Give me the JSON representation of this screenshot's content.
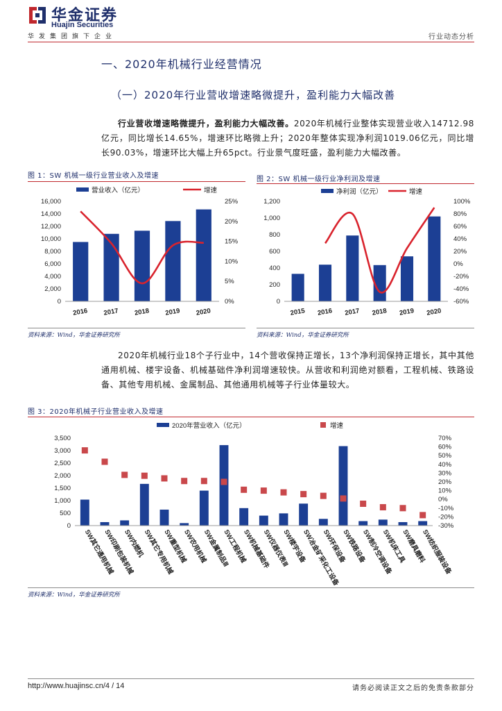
{
  "header": {
    "brand_cn": "华金证券",
    "brand_en": "Huajin Securities",
    "tagline": "华发集团旗下企业",
    "section": "行业动态分析",
    "accent": "#c0272d",
    "navy": "#1f2f6b"
  },
  "section1": {
    "title": "一、2020年机械行业经营情况",
    "subtitle": "（一）2020年行业营收增速略微提升，盈利能力大幅改善",
    "para_bold": "行业营收增速略微提升，盈利能力大幅改善。",
    "para_rest": "2020年机械行业整体实现营业收入14712.98亿元，同比增长14.65%，增速环比略微上升；2020年整体实现净利润1019.06亿元，同比增长90.03%，增速环比大幅上升65pct。行业景气度旺盛，盈利能力大幅改善。"
  },
  "fig1": {
    "title": "图 1：SW 机械一级行业营业收入及增速",
    "source": "资料来源：Wind，华金证券研究所"
  },
  "fig2": {
    "title": "图 2：SW 机械一级行业净利润及增速",
    "source": "资料来源：Wind，华金证券研究所"
  },
  "para2": "2020年机械行业18个子行业中，14个营收保持正增长，13个净利润保持正增长，其中其他通用机械、楼宇设备、机械基础件净利润增速较快。从营收和利润绝对额看，工程机械、铁路设备、其他专用机械、金属制品、其他通用机械等子行业体量较大。",
  "fig3": {
    "title": "图 3：2020年机械子行业营业收入及增速",
    "source": "资料来源：Wind，华金证券研究所"
  },
  "footer": {
    "url": "http://www.huajinsc.cn/",
    "page": "4 / 14",
    "disclaimer": "请务必阅读正文之后的免责条款部分"
  },
  "chart_data": [
    {
      "type": "bar",
      "title": "SW机械一级行业营业收入及增速",
      "categories": [
        "2016",
        "2017",
        "2018",
        "2019",
        "2020"
      ],
      "series": [
        {
          "name": "营业收入（亿元）",
          "axis": "left",
          "kind": "bar",
          "values": [
            9500,
            10800,
            11300,
            12850,
            14713
          ]
        },
        {
          "name": "增速",
          "axis": "right",
          "kind": "line",
          "values": [
            22.5,
            14.5,
            4.5,
            14.0,
            14.65
          ]
        }
      ],
      "ylim": [
        0,
        16000
      ],
      "yticks": [
        0,
        2000,
        4000,
        6000,
        8000,
        10000,
        12000,
        14000,
        16000
      ],
      "y2lim": [
        0,
        25
      ],
      "y2ticks": [
        0,
        5,
        10,
        15,
        20,
        25
      ],
      "y2suffix": "%",
      "bar_color": "#1c3f94",
      "line_color": "#d9232d"
    },
    {
      "type": "bar",
      "title": "SW机械一级行业净利润及增速",
      "categories": [
        "2015",
        "2016",
        "2017",
        "2018",
        "2019",
        "2020"
      ],
      "series": [
        {
          "name": "净利润（亿元）",
          "axis": "left",
          "kind": "bar",
          "values": [
            330,
            440,
            790,
            435,
            540,
            1019
          ]
        },
        {
          "name": "增速",
          "axis": "right",
          "kind": "line",
          "values": [
            null,
            33,
            80,
            -45,
            25,
            90
          ]
        }
      ],
      "ylim": [
        0,
        1200
      ],
      "yticks": [
        0,
        200,
        400,
        600,
        800,
        1000,
        1200
      ],
      "y2lim": [
        -60,
        100
      ],
      "y2ticks": [
        -60,
        -40,
        -20,
        0,
        20,
        40,
        60,
        80,
        100
      ],
      "y2suffix": "%",
      "bar_color": "#1c3f94",
      "line_color": "#d9232d"
    },
    {
      "type": "bar",
      "title": "2020年机械子行业营业收入及增速",
      "categories": [
        "SW其它通用机械",
        "SW印刷包装机械",
        "SW内燃机",
        "SW其它专用机械",
        "SW重型机械",
        "SW农用机械",
        "SW金属制品Ⅲ",
        "SW工程机械",
        "SW机械基础件",
        "SW仪器仪表Ⅲ",
        "SW楼宇设备",
        "SW冶金矿采化工设备",
        "SW环保设备",
        "SW铁路设备",
        "SW制冷空调设备",
        "SW机床工具",
        "SW磨具磨料",
        "SW纺织服装设备"
      ],
      "series": [
        {
          "name": "2020年营业收入（亿元）",
          "axis": "left",
          "kind": "bar",
          "values": [
            1040,
            140,
            210,
            1670,
            640,
            100,
            1400,
            3220,
            700,
            400,
            490,
            880,
            270,
            3180,
            180,
            240,
            140,
            180
          ]
        },
        {
          "name": "增速",
          "axis": "right",
          "kind": "scatter",
          "values": [
            56,
            43,
            28,
            27,
            24,
            21,
            21,
            20,
            11,
            10,
            8,
            6,
            4,
            1,
            -5,
            -9,
            -10,
            -18
          ]
        }
      ],
      "ylim": [
        0,
        3500
      ],
      "yticks": [
        0,
        500,
        1000,
        1500,
        2000,
        2500,
        3000,
        3500
      ],
      "y2lim": [
        -30,
        70
      ],
      "y2ticks": [
        -30,
        -20,
        -10,
        0,
        10,
        20,
        30,
        40,
        50,
        60,
        70
      ],
      "y2suffix": "%",
      "bar_color": "#1c3f94",
      "marker_color": "#c9484b"
    }
  ]
}
